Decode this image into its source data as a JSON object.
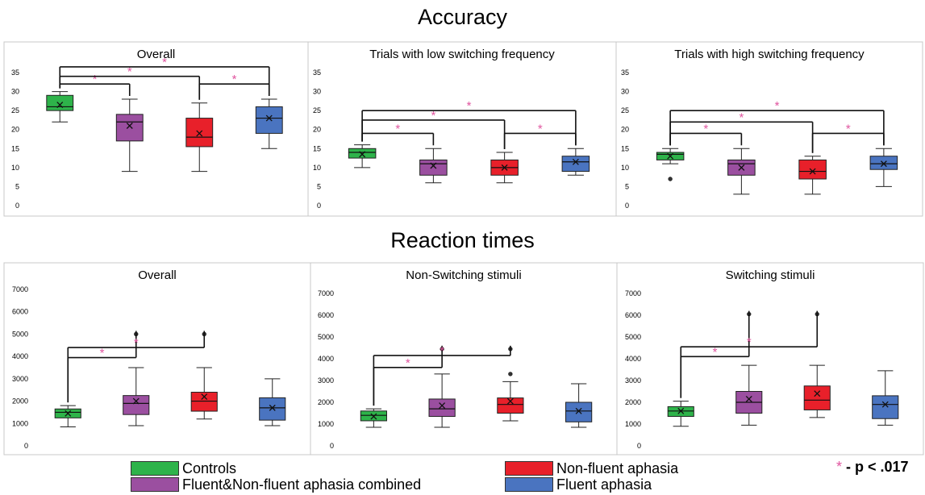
{
  "titles": {
    "accuracy": "Accuracy",
    "reaction_times": "Reaction times"
  },
  "colors": {
    "controls": "#2eb34a",
    "combined": "#9b4fa0",
    "nonfluent": "#e8202a",
    "fluent": "#4a74c0",
    "star": "#e0559f"
  },
  "legend": [
    {
      "label": "Controls",
      "color": "#2eb34a"
    },
    {
      "label": "Fluent&Non-fluent aphasia combined",
      "color": "#9b4fa0"
    },
    {
      "label": "Non-fluent aphasia",
      "color": "#e8202a"
    },
    {
      "label": "Fluent aphasia",
      "color": "#4a74c0"
    }
  ],
  "significance_note": {
    "star": "*",
    "text": " - p < .017"
  },
  "chart_data": [
    {
      "type": "box",
      "title": "Overall",
      "ylim": [
        0,
        35
      ],
      "yticks": [
        0,
        5,
        10,
        15,
        20,
        25,
        30,
        35
      ],
      "series": [
        {
          "min": 22,
          "q1": 25,
          "median": 26,
          "q3": 29,
          "max": 30,
          "mean": 26.5,
          "outliers": []
        },
        {
          "min": 9,
          "q1": 17,
          "median": 22,
          "q3": 24,
          "max": 28,
          "mean": 21,
          "outliers": []
        },
        {
          "min": 9,
          "q1": 15.5,
          "median": 18,
          "q3": 23,
          "max": 27,
          "mean": 19,
          "outliers": []
        },
        {
          "min": 15,
          "q1": 19,
          "median": 23,
          "q3": 26,
          "max": 28,
          "mean": 23,
          "outliers": []
        }
      ],
      "brackets": [
        {
          "from": 0,
          "to": 1,
          "y": 32,
          "star": "*"
        },
        {
          "from": 0,
          "to": 2,
          "y": 34,
          "star": "*"
        },
        {
          "from": 0,
          "to": 3,
          "y": 36.5,
          "star": "*"
        },
        {
          "from": 2,
          "to": 3,
          "y": 32,
          "star": "*"
        }
      ]
    },
    {
      "type": "box",
      "title": "Trials with low switching frequency",
      "ylim": [
        0,
        35
      ],
      "yticks": [
        0,
        5,
        10,
        15,
        20,
        25,
        30,
        35
      ],
      "series": [
        {
          "min": 10,
          "q1": 12.5,
          "median": 14,
          "q3": 15,
          "max": 16,
          "mean": 13.5,
          "outliers": []
        },
        {
          "min": 6,
          "q1": 8,
          "median": 11,
          "q3": 12,
          "max": 15,
          "mean": 10.5,
          "outliers": []
        },
        {
          "min": 6,
          "q1": 8,
          "median": 10,
          "q3": 12,
          "max": 14,
          "mean": 10,
          "outliers": []
        },
        {
          "min": 8,
          "q1": 9,
          "median": 11.5,
          "q3": 13,
          "max": 15,
          "mean": 11.5,
          "outliers": []
        }
      ],
      "brackets": [
        {
          "from": 0,
          "to": 1,
          "y": 19,
          "star": "*"
        },
        {
          "from": 0,
          "to": 2,
          "y": 22.5,
          "star": "*"
        },
        {
          "from": 0,
          "to": 3,
          "y": 25,
          "star": "*"
        },
        {
          "from": 2,
          "to": 3,
          "y": 19,
          "star": "*"
        }
      ]
    },
    {
      "type": "box",
      "title": "Trials with high switching frequency",
      "ylim": [
        0,
        35
      ],
      "yticks": [
        0,
        5,
        10,
        15,
        20,
        25,
        30,
        35
      ],
      "series": [
        {
          "min": 11,
          "q1": 12,
          "median": 13.5,
          "q3": 14,
          "max": 15,
          "mean": 13,
          "outliers": [
            7
          ]
        },
        {
          "min": 3,
          "q1": 8,
          "median": 11,
          "q3": 12,
          "max": 15,
          "mean": 10,
          "outliers": []
        },
        {
          "min": 3,
          "q1": 7,
          "median": 9,
          "q3": 12,
          "max": 13,
          "mean": 9,
          "outliers": []
        },
        {
          "min": 5,
          "q1": 9.5,
          "median": 11,
          "q3": 13,
          "max": 15,
          "mean": 11,
          "outliers": []
        }
      ],
      "brackets": [
        {
          "from": 0,
          "to": 1,
          "y": 19,
          "star": "*"
        },
        {
          "from": 0,
          "to": 2,
          "y": 22,
          "star": "*"
        },
        {
          "from": 0,
          "to": 3,
          "y": 25,
          "star": "*"
        },
        {
          "from": 2,
          "to": 3,
          "y": 19,
          "star": "*"
        }
      ]
    },
    {
      "type": "box",
      "title": "Overall",
      "ylim": [
        0,
        7000
      ],
      "yticks": [
        0,
        1000,
        2000,
        3000,
        4000,
        5000,
        6000,
        7000
      ],
      "series": [
        {
          "min": 850,
          "q1": 1250,
          "median": 1500,
          "q3": 1650,
          "max": 1800,
          "mean": 1450,
          "outliers": []
        },
        {
          "min": 900,
          "q1": 1400,
          "median": 1900,
          "q3": 2250,
          "max": 3500,
          "mean": 2000,
          "outliers": [
            5000
          ]
        },
        {
          "min": 1200,
          "q1": 1550,
          "median": 2000,
          "q3": 2400,
          "max": 3500,
          "mean": 2200,
          "outliers": [
            5000
          ]
        },
        {
          "min": 900,
          "q1": 1150,
          "median": 1700,
          "q3": 2150,
          "max": 3000,
          "mean": 1700,
          "outliers": []
        }
      ],
      "brackets": [
        {
          "from": 0,
          "to": 1,
          "y": 3950,
          "star": "*"
        },
        {
          "from": 0,
          "to": 2,
          "y": 4400,
          "star": "*"
        }
      ]
    },
    {
      "type": "box",
      "title": "Non-Switching stimuli",
      "ylim": [
        0,
        7000
      ],
      "yticks": [
        0,
        1000,
        2000,
        3000,
        4000,
        5000,
        6000,
        7000
      ],
      "series": [
        {
          "min": 850,
          "q1": 1150,
          "median": 1400,
          "q3": 1600,
          "max": 1700,
          "mean": 1350,
          "outliers": []
        },
        {
          "min": 850,
          "q1": 1350,
          "median": 1700,
          "q3": 2150,
          "max": 3300,
          "mean": 1850,
          "outliers": [
            4450
          ]
        },
        {
          "min": 1150,
          "q1": 1500,
          "median": 1900,
          "q3": 2200,
          "max": 2950,
          "mean": 2050,
          "outliers": [
            3300,
            4450
          ]
        },
        {
          "min": 850,
          "q1": 1100,
          "median": 1600,
          "q3": 2000,
          "max": 2850,
          "mean": 1600,
          "outliers": []
        }
      ],
      "brackets": [
        {
          "from": 0,
          "to": 1,
          "y": 3600,
          "star": "*"
        },
        {
          "from": 0,
          "to": 2,
          "y": 4150,
          "star": "*"
        }
      ]
    },
    {
      "type": "box",
      "title": "Switching stimuli",
      "ylim": [
        0,
        7000
      ],
      "yticks": [
        0,
        1000,
        2000,
        3000,
        4000,
        5000,
        6000,
        7000
      ],
      "series": [
        {
          "min": 900,
          "q1": 1350,
          "median": 1600,
          "q3": 1800,
          "max": 2050,
          "mean": 1600,
          "outliers": []
        },
        {
          "min": 950,
          "q1": 1500,
          "median": 2000,
          "q3": 2500,
          "max": 3700,
          "mean": 2150,
          "outliers": [
            6050
          ]
        },
        {
          "min": 1300,
          "q1": 1650,
          "median": 2100,
          "q3": 2750,
          "max": 3700,
          "mean": 2400,
          "outliers": [
            6050
          ]
        },
        {
          "min": 950,
          "q1": 1250,
          "median": 1900,
          "q3": 2300,
          "max": 3450,
          "mean": 1900,
          "outliers": []
        }
      ],
      "brackets": [
        {
          "from": 0,
          "to": 1,
          "y": 4100,
          "star": "*"
        },
        {
          "from": 0,
          "to": 2,
          "y": 4550,
          "star": "*"
        }
      ]
    }
  ]
}
